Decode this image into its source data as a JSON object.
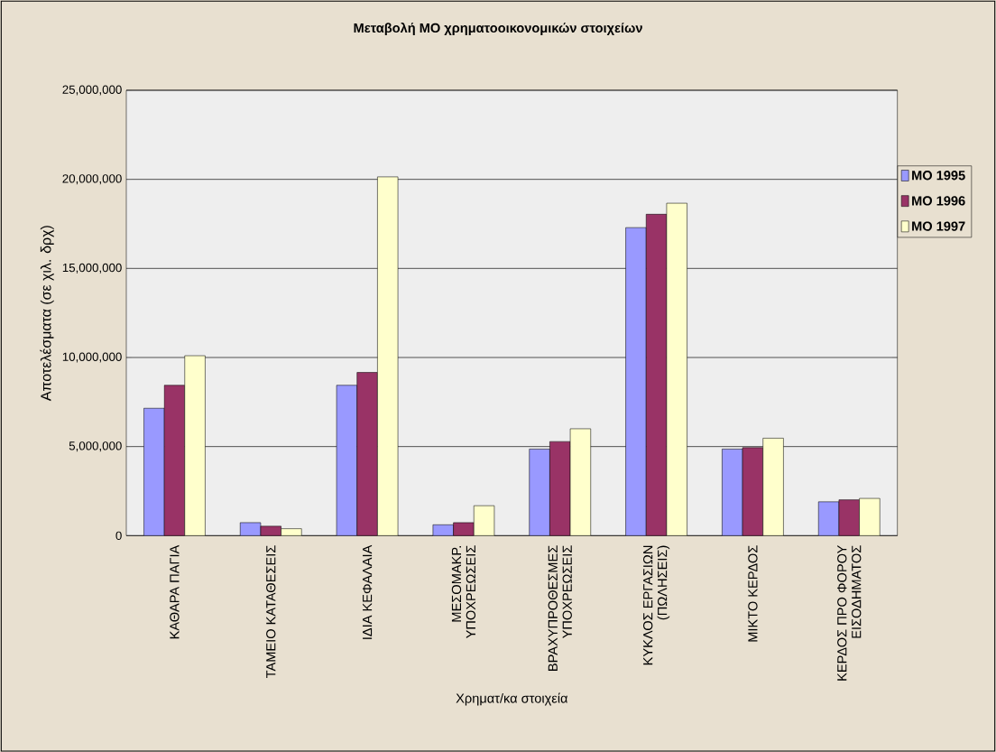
{
  "chart_data": {
    "type": "bar",
    "title": "Μεταβολή ΜΟ χρηματοοικονομικών στοιχείων",
    "xlabel": "Χρηματ/κα στοιχεία",
    "ylabel": "Αποτελέσματα (σε χιλ. δρχ)",
    "categories": [
      "ΚΑΘΑΡΑ ΠΑΓΙΑ",
      "ΤΑΜΕΙΟ ΚΑΤΑΘΕΣΕΙΣ",
      "ΙΔΙΑ ΚΕΦΑΛΑΙΑ",
      "ΜΕΣΟΜΑΚΡ. ΥΠΟΧΡΕΩΣΕΙΣ",
      "ΒΡΑΧΥΠΡΟΘΕΣΜΕΣ ΥΠΟΧΡΕΩΣΕΙΣ",
      "ΚΥΚΛΟΣ ΕΡΓΑΣΙΩΝ (ΠΩΛΗΣΕΙΣ)",
      "ΜΙΚΤΟ ΚΕΡΔΟΣ",
      "ΚΕΡΔΟΣ ΠΡΟ ΦΟΡΟΥ ΕΙΣΟΔΗΜΑΤΟΣ"
    ],
    "series": [
      {
        "name": "ΜΟ 1995",
        "color": "#9999ff",
        "values": [
          7150000,
          730000,
          8440000,
          610000,
          4860000,
          17290000,
          4860000,
          1900000
        ]
      },
      {
        "name": "ΜΟ 1996",
        "color": "#993366",
        "values": [
          8440000,
          530000,
          9160000,
          730000,
          5280000,
          18040000,
          4940000,
          2010000
        ]
      },
      {
        "name": "ΜΟ 1997",
        "color": "#ffffcc",
        "values": [
          10100000,
          390000,
          20140000,
          1680000,
          6000000,
          18660000,
          5470000,
          2090000
        ]
      }
    ],
    "ylim": [
      0,
      25000000
    ],
    "yticks": [
      {
        "value": 0,
        "label": "0"
      },
      {
        "value": 5000000,
        "label": "5,000,000"
      },
      {
        "value": 10000000,
        "label": "10,000,000"
      },
      {
        "value": 15000000,
        "label": "15,000,000"
      },
      {
        "value": 20000000,
        "label": "20,000,000"
      },
      {
        "value": 25000000,
        "label": "25,000,000"
      }
    ],
    "grid": "y",
    "legend": "right"
  }
}
